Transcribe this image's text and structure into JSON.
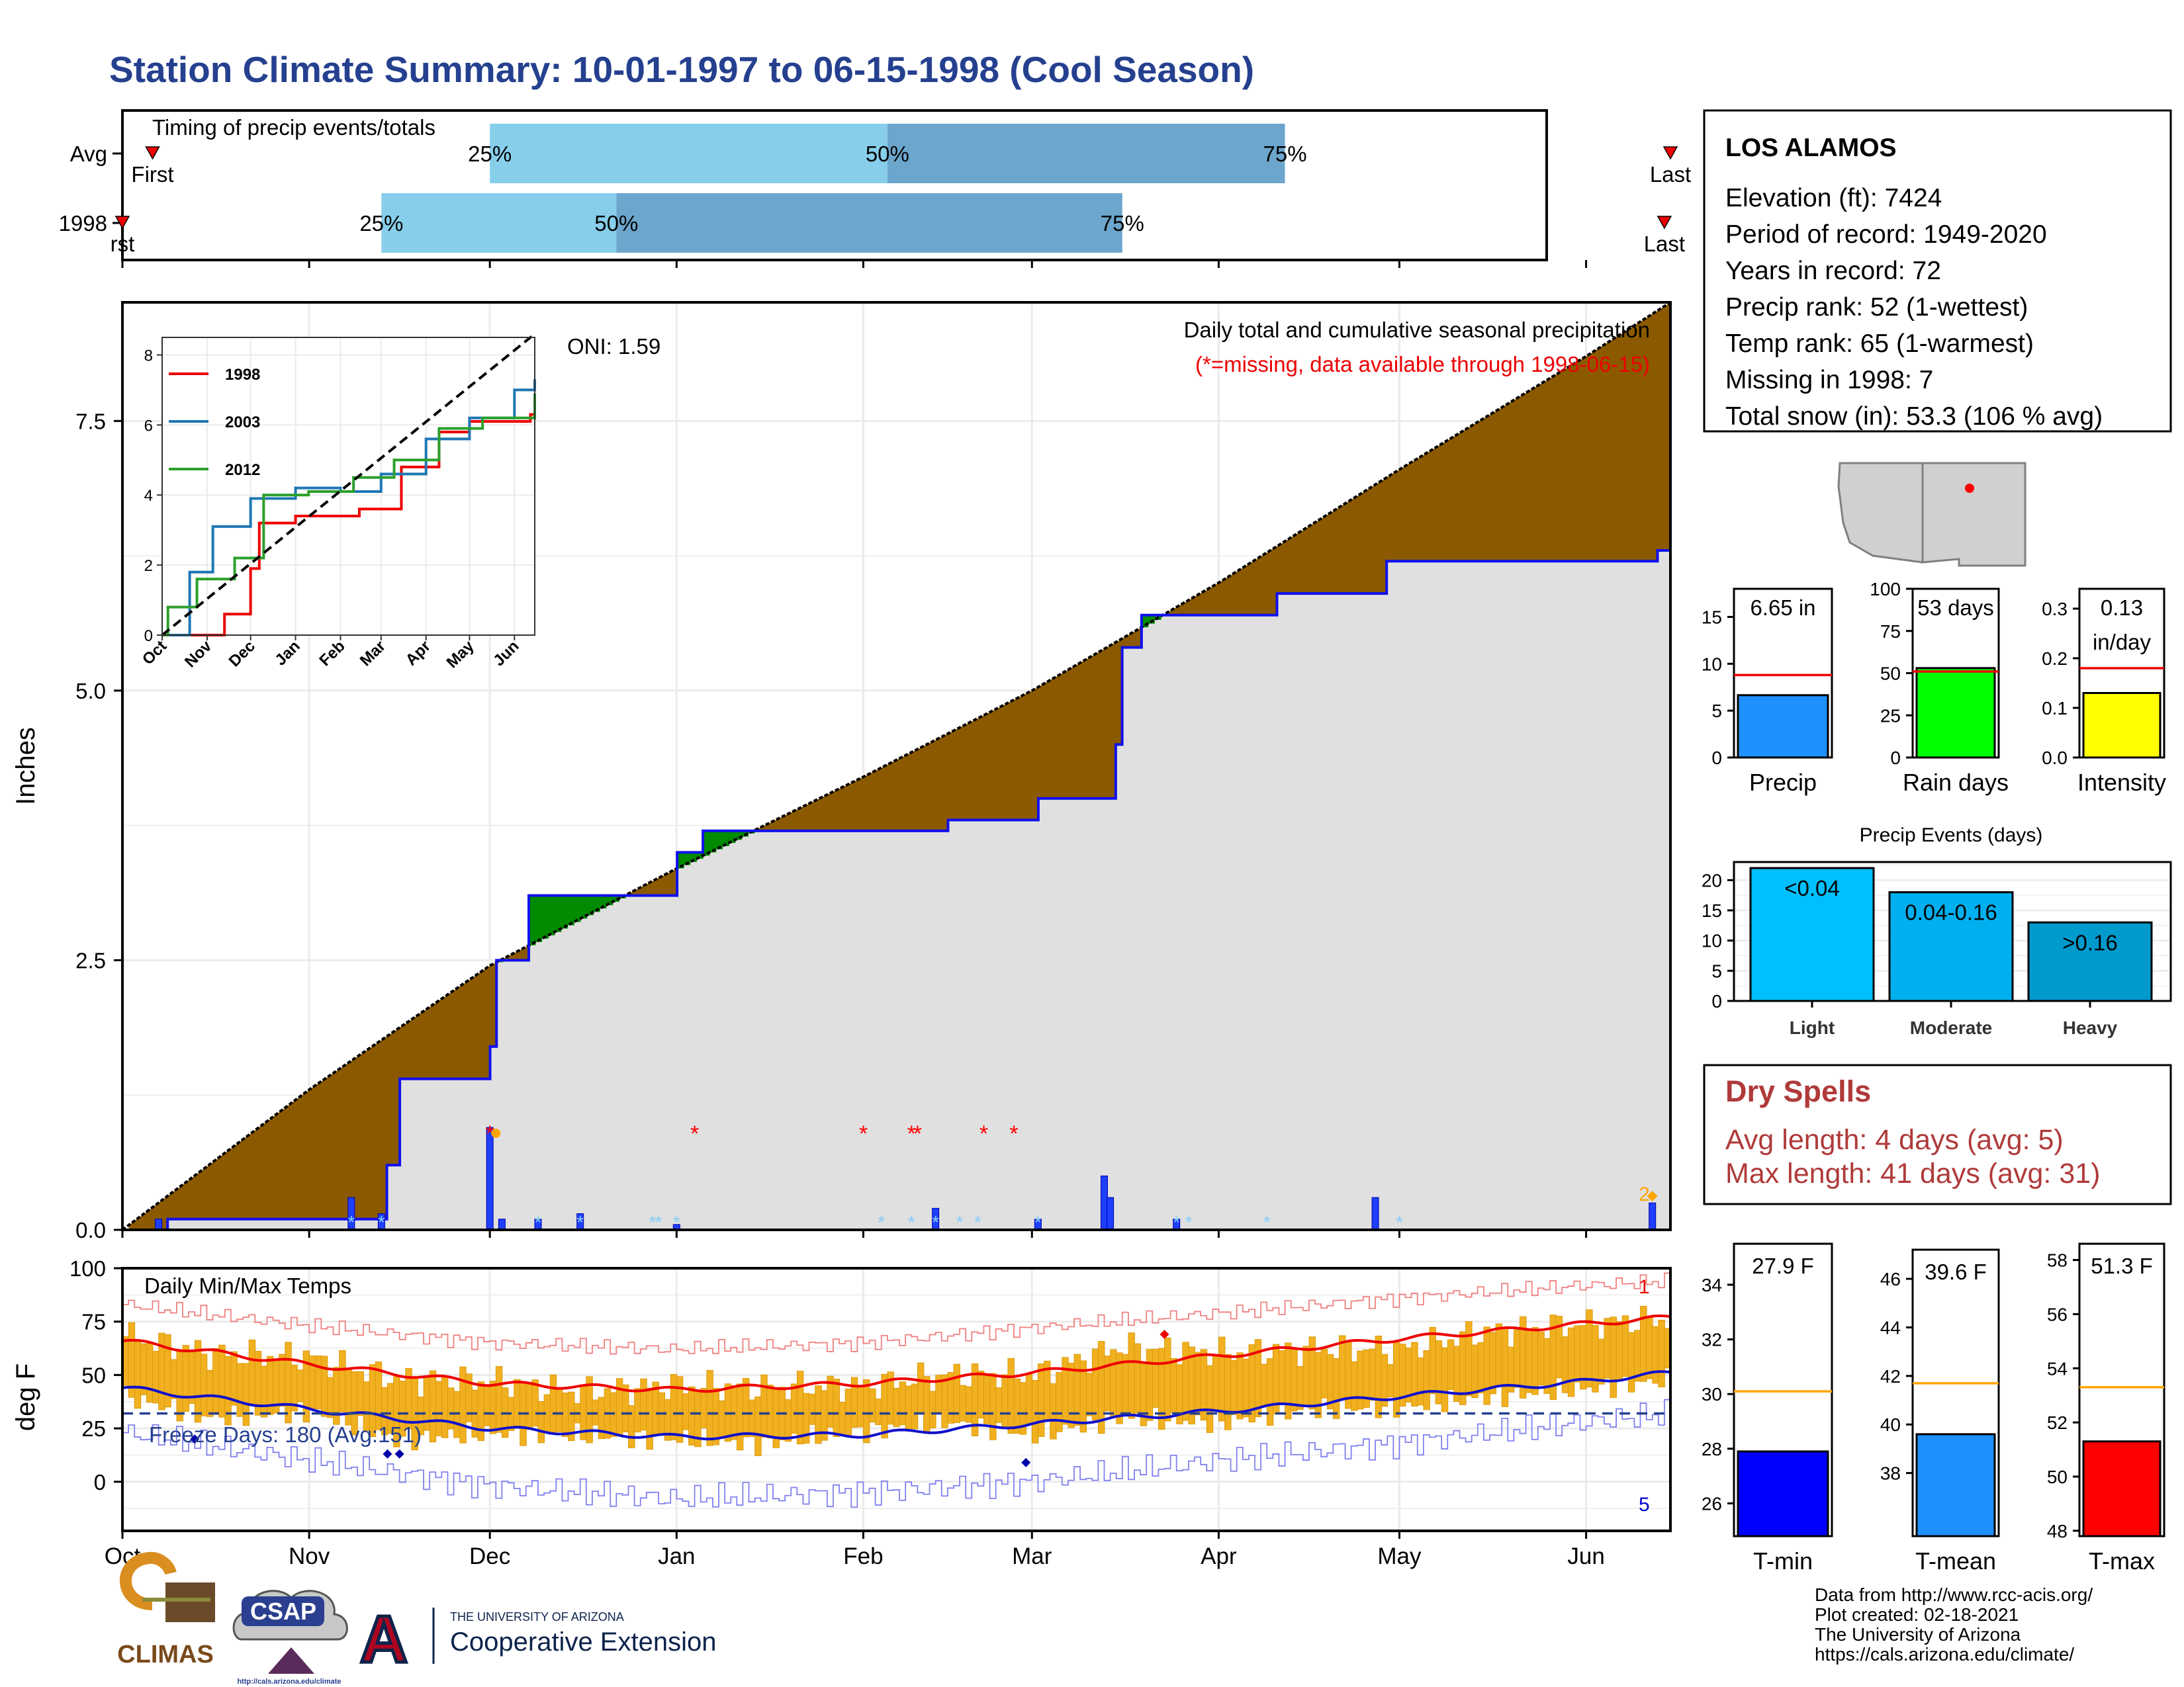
{
  "title": "Station Climate Summary: 10-01-1997 to 06-15-1998 (Cool Season)",
  "colors": {
    "title": "#25408f",
    "cum_1998": "#000000",
    "cum_avg_line": "#1010ee",
    "surplus_above_avg": "#8b5a00",
    "surplus_below_avg": "#008b00",
    "base_area": "#e0e0e0",
    "daily_bar": "#1f3fff",
    "tmax_avg": "#ee0000",
    "tmin_avg": "#1010cc",
    "daily_range": "#f0b020",
    "record_high": "#f08080",
    "record_low": "#8080f0",
    "quartile_light": "#87ceeb",
    "quartile_dark": "#6ca6cd",
    "missing": "#ff0000",
    "snow": "#87cefa"
  },
  "timing": {
    "title": "Timing of precip events/totals",
    "rows": [
      {
        "label": "Avg",
        "first_label": "First",
        "last_label": "Last",
        "first_date": "1997-10-06",
        "last_date": "1998-06-15",
        "p25": "1997-12-01",
        "p50": "1998-02-05",
        "p75": "1998-04-12",
        "p25_label": "25%",
        "p50_label": "50%",
        "p75_label": "75%"
      },
      {
        "label": "1998",
        "first_label": "rst",
        "last_label": "Last",
        "first_date": "1997-10-01",
        "last_date": "1998-06-14",
        "p25": "1997-11-13",
        "p50": "1997-12-22",
        "p75": "1998-03-16",
        "p25_label": "25%",
        "p50_label": "50%",
        "p75_label": "75%"
      }
    ]
  },
  "precip_panel": {
    "ylabel": "Inches",
    "oni_label": "ONI: 1.59",
    "heading": "Daily total and cumulative seasonal precipitation",
    "missing_note": "(*=missing, data available through 1998-06-15)",
    "end_annotation": "2"
  },
  "temp_panel": {
    "ylabel": "deg F",
    "title": "Daily Min/Max Temps",
    "freeze_label": "Freeze Days: 180 (Avg:151)",
    "record_high_count": "1",
    "record_low_count": "5",
    "x_tick_labels": [
      "Oct",
      "Nov",
      "Dec",
      "Jan",
      "Feb",
      "Mar",
      "Apr",
      "May",
      "Jun"
    ]
  },
  "station_info": {
    "name": "LOS ALAMOS",
    "lines": [
      "Elevation (ft): 7424",
      "Period of record: 1949-2020",
      "Years in record: 72",
      "Precip rank: 52 (1-wettest)",
      "Temp rank: 65 (1-warmest)",
      "Missing in 1998: 7",
      "Total snow (in): 53.3 (106 % avg)"
    ]
  },
  "mini_stats": [
    {
      "label": "Precip",
      "value_label": "6.65 in",
      "value": 6.65,
      "avg": 8.8,
      "ymax": 18,
      "ticks": [
        0,
        5,
        10,
        15
      ],
      "color": "#1e90ff"
    },
    {
      "label": "Rain days",
      "value_label": "53 days",
      "value": 53,
      "avg": 51,
      "ymax": 100,
      "ticks": [
        0,
        25,
        50,
        75,
        100
      ],
      "color": "#00ff00"
    },
    {
      "label": "Intensity",
      "value_label": "0.13",
      "value_label2": "in/day",
      "value": 0.13,
      "avg": 0.18,
      "ymax": 0.34,
      "ticks": [
        0.0,
        0.1,
        0.2,
        0.3
      ],
      "tick_labels": [
        "0.0",
        "0.1",
        "0.2",
        "0.3"
      ],
      "color": "#ffff00"
    }
  ],
  "precip_events": {
    "title": "Precip Events (days)",
    "ymax": 23,
    "ticks": [
      0,
      5,
      10,
      15,
      20
    ],
    "bars": [
      {
        "category": "Light",
        "label": "<0.04",
        "value": 22,
        "color": "#00bfff"
      },
      {
        "category": "Moderate",
        "label": "0.04-0.16",
        "value": 18,
        "color": "#00afee"
      },
      {
        "category": "Heavy",
        "label": ">0.16",
        "value": 13,
        "color": "#009acd"
      }
    ]
  },
  "dry_spells": {
    "title": "Dry Spells",
    "avg_line": "Avg length: 4 days (avg: 5)",
    "max_line": "Max length: 41 days (avg: 31)"
  },
  "temp_stats": [
    {
      "label": "T-min",
      "value_label": "27.9 F",
      "value": 27.9,
      "avg": 30.1,
      "ylim": [
        24.8,
        35.5
      ],
      "ticks": [
        26,
        28,
        30,
        32,
        34
      ],
      "color": "#0000ff"
    },
    {
      "label": "T-mean",
      "value_label": "39.6 F",
      "value": 39.6,
      "avg": 41.7,
      "ylim": [
        35.4,
        47.2
      ],
      "ticks": [
        38,
        40,
        42,
        44,
        46
      ],
      "color": "#1e90ff"
    },
    {
      "label": "T-max",
      "value_label": "51.3 F",
      "value": 51.3,
      "avg": 53.3,
      "ylim": [
        47.8,
        58.6
      ],
      "ticks": [
        48,
        50,
        52,
        54,
        56,
        58
      ],
      "color": "#ff0000"
    }
  ],
  "credits": [
    "Data from http://www.rcc-acis.org/",
    "Plot created: 02-18-2021",
    "The University of Arizona",
    "https://cals.arizona.edu/climate/"
  ],
  "logos": {
    "climas": "CLIMAS",
    "csap": "CSAP",
    "csap_url": "http://cals.arizona.edu/climate",
    "ua_small": "THE UNIVERSITY OF ARIZONA",
    "ua_big": "Cooperative Extension",
    "ua_letter": "A"
  },
  "chart_data": [
    {
      "type": "area",
      "title": "Daily total and cumulative seasonal precipitation",
      "ylabel": "Inches",
      "ylim": [
        0,
        8.6
      ],
      "yticks": [
        0.0,
        2.5,
        5.0,
        7.5
      ],
      "x_range": [
        "1997-10-01",
        "1998-06-15"
      ],
      "series": [
        {
          "name": "cumulative_1998",
          "x": [
            "1997-10-01",
            "1997-10-08",
            "1997-11-13",
            "1997-11-16",
            "1997-12-01",
            "1997-12-02",
            "1997-12-07",
            "1998-01-01",
            "1998-01-05",
            "1998-02-09",
            "1998-02-14",
            "1998-03-01",
            "1998-03-14",
            "1998-03-15",
            "1998-03-19",
            "1998-04-10",
            "1998-04-28",
            "1998-06-12",
            "1998-06-15"
          ],
          "y": [
            0.0,
            0.1,
            0.6,
            1.4,
            1.7,
            2.5,
            3.1,
            3.5,
            3.7,
            3.7,
            3.8,
            4.0,
            4.5,
            5.4,
            5.7,
            5.9,
            6.2,
            6.3,
            6.65
          ]
        },
        {
          "name": "cumulative_average",
          "x": [
            "1997-10-01",
            "1997-11-01",
            "1997-12-01",
            "1998-01-01",
            "1998-02-01",
            "1998-03-01",
            "1998-04-01",
            "1998-05-01",
            "1998-06-01",
            "1998-06-15"
          ],
          "y": [
            0.0,
            1.3,
            2.45,
            3.35,
            4.2,
            5.0,
            6.0,
            7.05,
            8.1,
            8.6
          ]
        },
        {
          "name": "daily_precip",
          "x": [
            "1997-10-07",
            "1997-11-08",
            "1997-11-13",
            "1997-12-01",
            "1997-12-03",
            "1997-12-09",
            "1997-12-16",
            "1998-01-01",
            "1998-02-13",
            "1998-03-02",
            "1998-03-13",
            "1998-03-14",
            "1998-03-25",
            "1998-04-27",
            "1998-06-12"
          ],
          "y": [
            0.1,
            0.3,
            0.15,
            0.95,
            0.1,
            0.1,
            0.15,
            0.05,
            0.2,
            0.1,
            0.5,
            0.3,
            0.1,
            0.3,
            0.25
          ]
        }
      ],
      "missing_dates": [
        "1997-12-01",
        "1998-01-04",
        "1998-02-01",
        "1998-02-09",
        "1998-02-10",
        "1998-02-21",
        "1998-02-26"
      ]
    },
    {
      "type": "line",
      "title": "Daily Min/Max Temps",
      "ylabel": "deg F",
      "ylim": [
        -23,
        100
      ],
      "yticks": [
        0,
        25,
        50,
        75,
        100
      ],
      "x_tick_labels": [
        "Oct",
        "Nov",
        "Dec",
        "Jan",
        "Feb",
        "Mar",
        "Apr",
        "May",
        "Jun"
      ],
      "freeze_line": 32,
      "series": [
        {
          "name": "avg_tmax",
          "x": [
            "1997-10-01",
            "1997-11-01",
            "1997-12-01",
            "1998-01-01",
            "1998-02-01",
            "1998-03-01",
            "1998-04-01",
            "1998-05-01",
            "1998-06-01",
            "1998-06-15"
          ],
          "y": [
            66,
            55,
            46,
            43,
            46,
            51,
            59,
            67,
            74,
            77
          ]
        },
        {
          "name": "avg_tmin",
          "x": [
            "1997-10-01",
            "1997-11-01",
            "1997-12-01",
            "1998-01-01",
            "1998-02-01",
            "1998-03-01",
            "1998-04-01",
            "1998-05-01",
            "1998-06-01",
            "1998-06-15"
          ],
          "y": [
            44,
            34,
            25,
            21,
            22,
            27,
            33,
            40,
            47,
            51
          ]
        },
        {
          "name": "record_high",
          "x": [
            "1997-10-01",
            "1997-11-01",
            "1997-12-01",
            "1998-01-01",
            "1998-02-01",
            "1998-03-01",
            "1998-04-01",
            "1998-05-01",
            "1998-06-01",
            "1998-06-15"
          ],
          "y": [
            83,
            73,
            65,
            62,
            65,
            72,
            79,
            86,
            92,
            94
          ]
        },
        {
          "name": "record_low",
          "x": [
            "1997-10-01",
            "1997-11-01",
            "1997-12-01",
            "1998-01-01",
            "1998-02-01",
            "1998-03-01",
            "1998-04-01",
            "1998-05-01",
            "1998-06-01",
            "1998-06-15"
          ],
          "y": [
            23,
            10,
            -2,
            -8,
            -5,
            0,
            10,
            18,
            28,
            32
          ]
        },
        {
          "name": "obs_tmax",
          "x": [
            "1997-10-01",
            "1997-10-15",
            "1997-11-01",
            "1997-11-15",
            "1997-12-01",
            "1997-12-15",
            "1998-01-01",
            "1998-01-15",
            "1998-02-01",
            "1998-02-15",
            "1998-03-01",
            "1998-03-15",
            "1998-04-01",
            "1998-04-15",
            "1998-05-01",
            "1998-05-15",
            "1998-06-01",
            "1998-06-15"
          ],
          "y": [
            68,
            60,
            58,
            48,
            47,
            42,
            45,
            44,
            45,
            50,
            50,
            63,
            60,
            62,
            62,
            70,
            74,
            76
          ]
        },
        {
          "name": "obs_tmin",
          "x": [
            "1997-10-01",
            "1997-10-15",
            "1997-11-01",
            "1997-11-15",
            "1997-12-01",
            "1997-12-15",
            "1998-01-01",
            "1998-01-15",
            "1998-02-01",
            "1998-02-15",
            "1998-03-01",
            "1998-03-15",
            "1998-04-01",
            "1998-04-15",
            "1998-05-01",
            "1998-05-15",
            "1998-06-01",
            "1998-06-15"
          ],
          "y": [
            40,
            30,
            33,
            20,
            23,
            22,
            20,
            18,
            24,
            28,
            22,
            30,
            28,
            34,
            35,
            40,
            44,
            48
          ]
        }
      ]
    },
    {
      "type": "line",
      "title": "",
      "inset": true,
      "ylim": [
        0,
        8.5
      ],
      "yticks": [
        0,
        2,
        4,
        6,
        8
      ],
      "x_tick_labels": [
        "Oct",
        "Nov",
        "Dec",
        "Jan",
        "Feb",
        "Mar",
        "Apr",
        "May",
        "Jun"
      ],
      "series": [
        {
          "name": "1998",
          "color": "#ee0000",
          "x": [
            "1997-10-01",
            "1997-11-13",
            "1997-12-01",
            "1997-12-07",
            "1998-01-01",
            "1998-02-14",
            "1998-03-15",
            "1998-04-10",
            "1998-05-01",
            "1998-06-12",
            "1998-06-15"
          ],
          "y": [
            0,
            0.6,
            1.9,
            3.2,
            3.4,
            3.6,
            4.8,
            5.8,
            6.1,
            6.3,
            6.65
          ]
        },
        {
          "name": "2003",
          "color": "#1f77b4",
          "x": [
            "1997-10-01",
            "1997-10-20",
            "1997-11-05",
            "1997-12-01",
            "1998-01-01",
            "1998-02-01",
            "1998-03-01",
            "1998-04-01",
            "1998-05-01",
            "1998-06-01",
            "1998-06-15"
          ],
          "y": [
            0,
            1.8,
            3.1,
            3.9,
            4.2,
            4.1,
            4.6,
            5.6,
            6.2,
            7.0,
            7.3
          ]
        },
        {
          "name": "2012",
          "color": "#2ca02c",
          "x": [
            "1997-10-01",
            "1997-10-05",
            "1997-10-25",
            "1997-11-20",
            "1997-12-10",
            "1998-01-10",
            "1998-02-10",
            "1998-03-10",
            "1998-04-10",
            "1998-05-10",
            "1998-06-15"
          ],
          "y": [
            0,
            0.8,
            1.6,
            2.2,
            4.0,
            4.1,
            4.5,
            5.0,
            5.9,
            6.2,
            6.9
          ]
        },
        {
          "name": "avg",
          "style": "dashed",
          "color": "#000000",
          "x": [
            "1997-10-01",
            "1998-06-15"
          ],
          "y": [
            0,
            8.6
          ]
        }
      ]
    },
    {
      "type": "bar",
      "title": "Precip Events (days)",
      "categories": [
        "Light",
        "Moderate",
        "Heavy"
      ],
      "values": [
        22,
        18,
        13
      ],
      "ylim": [
        0,
        23
      ]
    }
  ]
}
